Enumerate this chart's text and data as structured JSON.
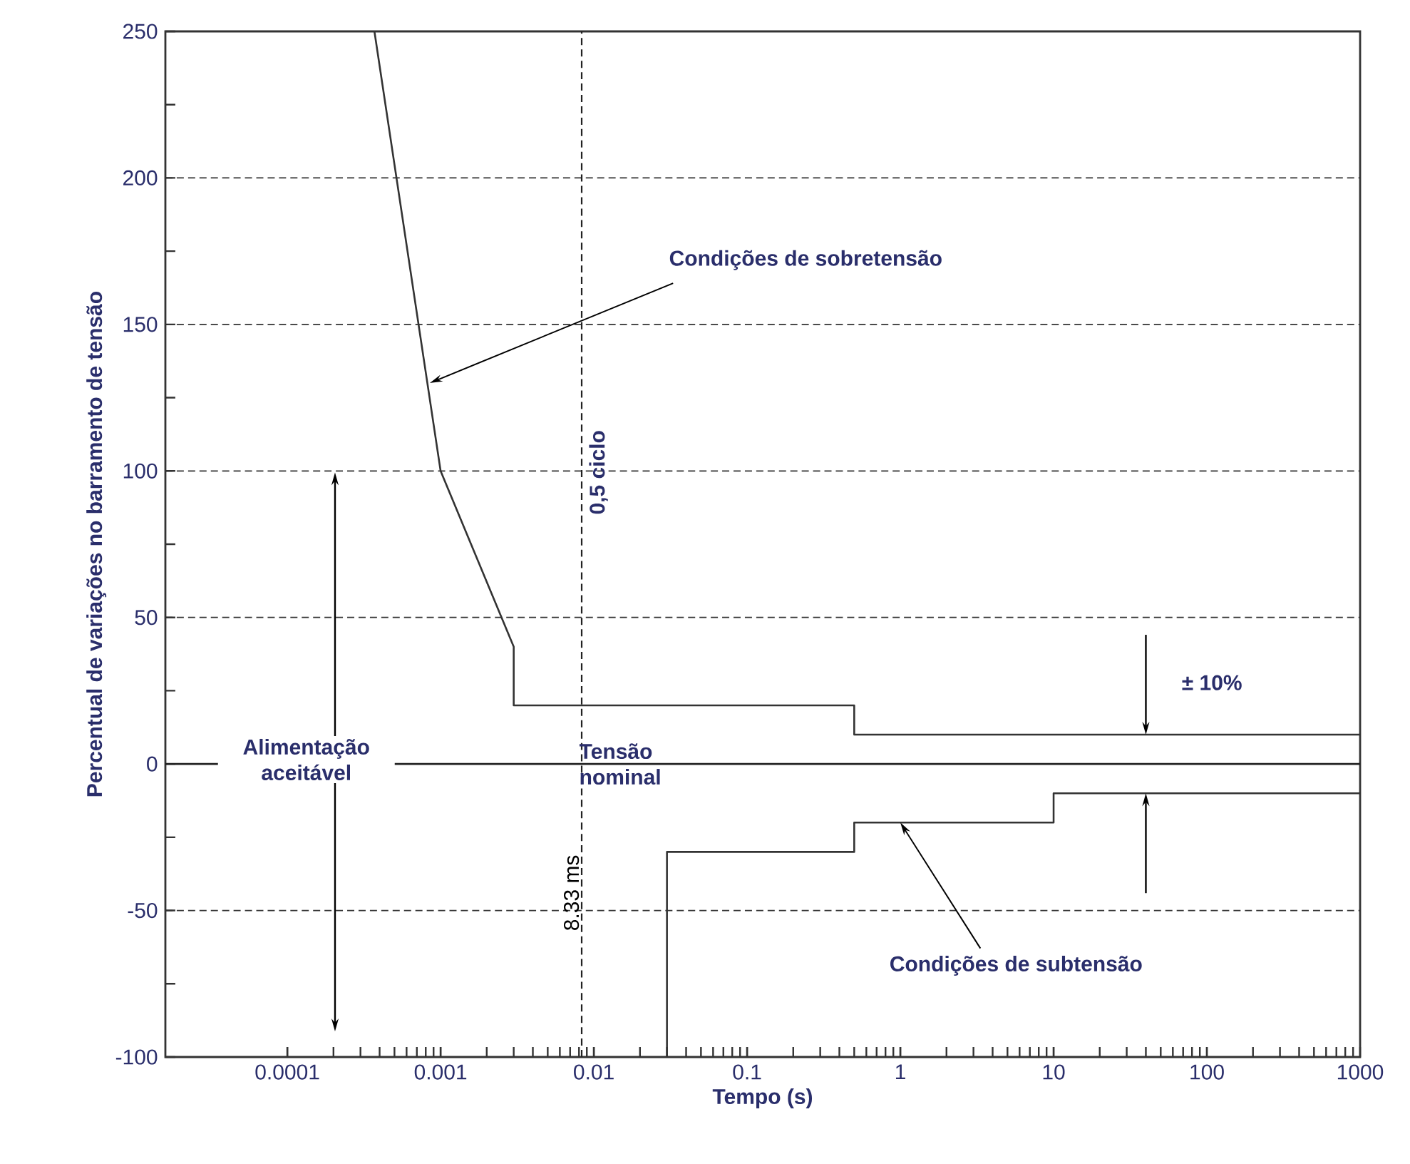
{
  "chart_data": {
    "type": "line",
    "xlabel": "Tempo (s)",
    "ylabel": "Percentual de variações no barramento de tensão",
    "log": "x",
    "xlim": [
      1.6e-05,
      1000
    ],
    "xticks": [
      0.0001,
      0.001,
      0.01,
      0.1,
      1,
      10,
      100,
      1000
    ],
    "ylim": [
      -100,
      250
    ],
    "yticks": [
      -100,
      {
        "value": -75,
        "label": null
      },
      -50,
      {
        "value": -25,
        "label": null
      },
      0,
      {
        "value": 25,
        "label": null
      },
      50,
      {
        "value": 75,
        "label": null
      },
      100,
      {
        "value": 125,
        "label": null
      },
      150,
      {
        "value": 175,
        "label": null
      },
      200,
      {
        "value": 225,
        "label": null
      },
      250
    ],
    "grid": "y",
    "series": [
      {
        "color": "#333333",
        "x": [
          0.00037,
          0.001,
          0.003,
          0.003,
          0.5,
          0.5,
          1000
        ],
        "values": [
          250,
          100,
          40,
          20,
          20,
          10,
          10
        ]
      },
      {
        "color": "#333333",
        "x": [
          0.03,
          0.03,
          0.5,
          0.5,
          10,
          10,
          1000
        ],
        "values": [
          -100,
          -30,
          -30,
          -20,
          -20,
          -10,
          -10
        ]
      }
    ],
    "ref_lines": [
      {
        "axis": "x",
        "value": 0.00833,
        "label": "0,5 ciclo",
        "line_style": "dashed",
        "color": "#222222"
      },
      {
        "axis": "y",
        "value": 0,
        "label": "Tensão nominal",
        "line_style": "solid",
        "color": "#222222"
      }
    ],
    "annotations": [
      {
        "text": "Condições de sobretensão",
        "x": 0.00085,
        "y": 130
      },
      {
        "text": "Condições de subtensão",
        "x": 1,
        "y": -20
      },
      {
        "text": "± 10%",
        "x": 40,
        "y": 10
      },
      "Alimentação aceitável",
      "8.33 ms"
    ]
  }
}
